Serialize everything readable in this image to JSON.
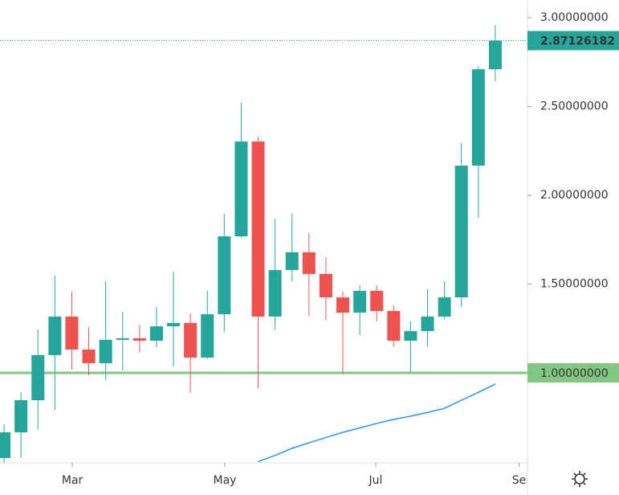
{
  "chart_data": {
    "type": "candlestick",
    "x": [
      0,
      1,
      2,
      3,
      4,
      5,
      6,
      7,
      8,
      9,
      10,
      11,
      12,
      13,
      14,
      15,
      16,
      17,
      18,
      19,
      20,
      21,
      22,
      23,
      24,
      25,
      26,
      27,
      28,
      29
    ],
    "open": [
      0.52,
      0.665,
      0.846,
      1.1,
      1.317,
      1.131,
      1.054,
      1.186,
      1.195,
      1.181,
      1.262,
      1.281,
      1.086,
      1.33,
      1.769,
      2.303,
      1.317,
      1.579,
      1.679,
      1.557,
      1.425,
      1.339,
      1.462,
      1.348,
      1.181,
      1.235,
      1.317,
      1.425,
      2.167,
      2.71
    ],
    "high": [
      0.71,
      0.89,
      1.244,
      1.548,
      1.457,
      1.258,
      1.516,
      1.344,
      1.27,
      1.371,
      1.57,
      1.335,
      1.462,
      1.896,
      2.52,
      2.33,
      1.869,
      1.896,
      1.787,
      1.652,
      1.457,
      1.493,
      1.493,
      1.38,
      1.29,
      1.471,
      1.516,
      2.294,
      2.728,
      2.959
    ],
    "low": [
      0.49,
      0.52,
      0.68,
      0.79,
      1.018,
      0.986,
      0.959,
      1.014,
      1.118,
      1.145,
      1.036,
      0.887,
      1.077,
      1.231,
      1.76,
      0.914,
      1.244,
      1.516,
      1.321,
      1.299,
      0.991,
      1.213,
      1.29,
      1.149,
      1.005,
      1.149,
      1.303,
      1.371,
      1.873,
      2.643
    ],
    "close": [
      0.665,
      0.846,
      1.1,
      1.317,
      1.131,
      1.054,
      1.186,
      1.195,
      1.181,
      1.262,
      1.281,
      1.086,
      1.33,
      1.769,
      2.303,
      1.317,
      1.579,
      1.679,
      1.557,
      1.425,
      1.339,
      1.462,
      1.348,
      1.181,
      1.235,
      1.317,
      1.425,
      2.167,
      2.71,
      2.87126182
    ],
    "up_color": "#26a69a",
    "down_color": "#ef5350",
    "ma": {
      "color": "#2196f3",
      "values": [
        null,
        null,
        null,
        null,
        null,
        null,
        null,
        null,
        null,
        null,
        null,
        null,
        null,
        null,
        null,
        0.5,
        0.535,
        0.575,
        0.606,
        0.636,
        0.665,
        0.69,
        0.715,
        0.738,
        0.756,
        0.777,
        0.8,
        0.846,
        0.89,
        0.937
      ]
    },
    "hline": {
      "value": 1,
      "label": "1.00000000",
      "color": "#81c784"
    },
    "xlim": [
      -0.24,
      30.9
    ],
    "ylim": [
      0.493,
      3.1
    ],
    "xticks": [
      {
        "value": 4.03,
        "label": "Mar"
      },
      {
        "value": 13.03,
        "label": "May"
      },
      {
        "value": 21.94,
        "label": "Jul"
      },
      {
        "value": 30.4,
        "label": "Se"
      }
    ],
    "yticks": [
      {
        "value": 1.5,
        "label": "1.50000000"
      },
      {
        "value": 2,
        "label": "2.00000000"
      },
      {
        "value": 2.5,
        "label": "2.50000000"
      },
      {
        "value": 3,
        "label": "3.00000000"
      }
    ],
    "grid": false
  }
}
